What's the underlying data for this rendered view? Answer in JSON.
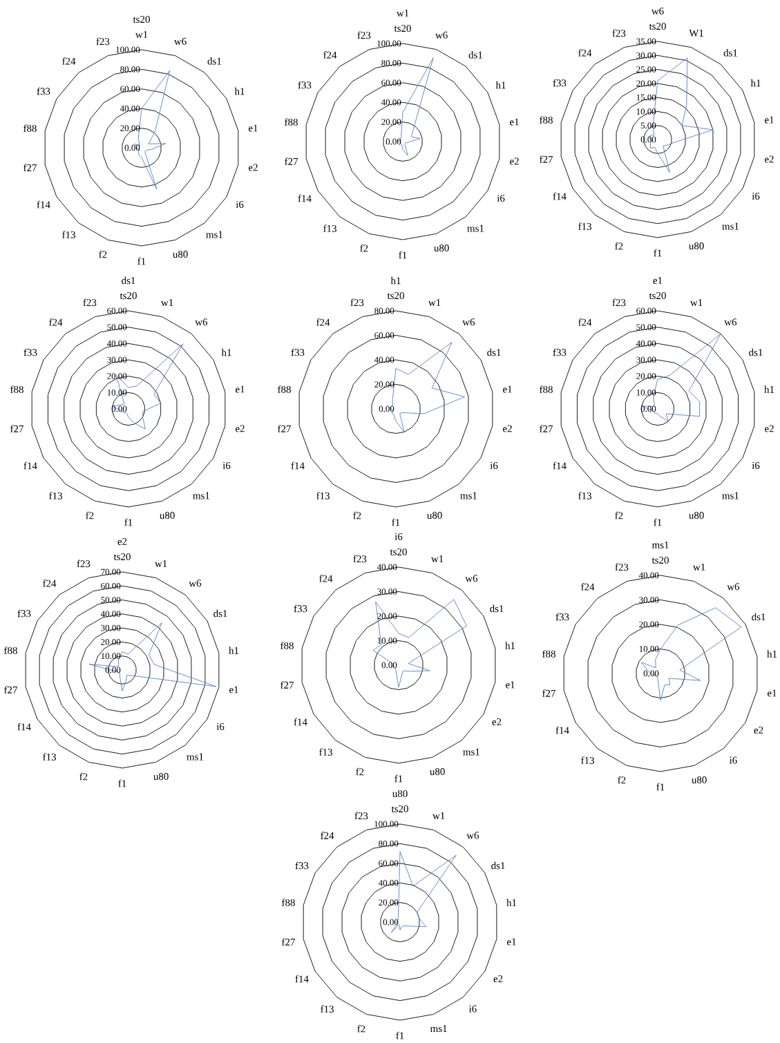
{
  "chart_data": [
    {
      "type": "radar",
      "title": "ts20",
      "categories": [
        "w1",
        "w6",
        "ds1",
        "h1",
        "e1",
        "e2",
        "i6",
        "ms1",
        "u80",
        "f1",
        "f2",
        "f13",
        "f14",
        "f27",
        "f88",
        "f33",
        "f24",
        "f23"
      ],
      "grid": true,
      "ylim": [
        0,
        100
      ],
      "yticks": [
        {
          "value": 0,
          "label": "0.00"
        },
        {
          "value": 20,
          "label": "20.00"
        },
        {
          "value": 40,
          "label": "40.00"
        },
        {
          "value": 60,
          "label": "60.00"
        },
        {
          "value": 80,
          "label": "80.00"
        },
        {
          "value": 100,
          "label": "100.00"
        }
      ],
      "series": [
        {
          "color": "#4f7fc8",
          "values": [
            40,
            84,
            21,
            8,
            25,
            10,
            5,
            5,
            45,
            10,
            8,
            5,
            3,
            5,
            5,
            8,
            3,
            10
          ]
        }
      ]
    },
    {
      "type": "radar",
      "title": "w1",
      "categories": [
        "ts20",
        "w6",
        "ds1",
        "h1",
        "e1",
        "e2",
        "i6",
        "ms1",
        "u80",
        "f1",
        "f2",
        "f13",
        "f14",
        "f27",
        "f88",
        "f33",
        "f24",
        "f23"
      ],
      "grid": true,
      "ylim": [
        0,
        100
      ],
      "yticks": [
        {
          "value": 0,
          "label": "0.00"
        },
        {
          "value": 20,
          "label": "20.00"
        },
        {
          "value": 40,
          "label": "40.00"
        },
        {
          "value": 60,
          "label": "60.00"
        },
        {
          "value": 80,
          "label": "80.00"
        },
        {
          "value": 100,
          "label": "100.00"
        }
      ],
      "series": [
        {
          "color": "#4f7fc8",
          "values": [
            30,
            91,
            17,
            10,
            18,
            5,
            3,
            3,
            15,
            8,
            3,
            3,
            3,
            3,
            5,
            3,
            3,
            5
          ]
        }
      ]
    },
    {
      "type": "radar",
      "title": "w6",
      "categories": [
        "ts20",
        "W1",
        "ds1",
        "h1",
        "e1",
        "e2",
        "i6",
        "ms1",
        "u80",
        "f1",
        "f2",
        "f13",
        "f14",
        "f27",
        "f88",
        "f33",
        "f24",
        "f23"
      ],
      "grid": true,
      "ylim": [
        0,
        35
      ],
      "yticks": [
        {
          "value": 0,
          "label": "0.00"
        },
        {
          "value": 5,
          "label": "5.00"
        },
        {
          "value": 10,
          "label": "10.00"
        },
        {
          "value": 15,
          "label": "15.00"
        },
        {
          "value": 20,
          "label": "20.00"
        },
        {
          "value": 25,
          "label": "25.00"
        },
        {
          "value": 30,
          "label": "30.00"
        },
        {
          "value": 35,
          "label": "35.00"
        }
      ],
      "series": [
        {
          "color": "#4f7fc8",
          "values": [
            21,
            31,
            16,
            10,
            20,
            6,
            4,
            3,
            12.5,
            5,
            3,
            4,
            3,
            2,
            3,
            3,
            2,
            5
          ]
        }
      ]
    },
    {
      "type": "radar",
      "title": "ds1",
      "categories": [
        "ts20",
        "w1",
        "w6",
        "h1",
        "e1",
        "e2",
        "i6",
        "ms1",
        "u80",
        "f1",
        "f2",
        "f13",
        "f14",
        "f27",
        "f88",
        "f33",
        "f24",
        "f23"
      ],
      "grid": true,
      "ylim": [
        0,
        60
      ],
      "yticks": [
        {
          "value": 0,
          "label": "0.00"
        },
        {
          "value": 10,
          "label": "10.00"
        },
        {
          "value": 20,
          "label": "20.00"
        },
        {
          "value": 30,
          "label": "30.00"
        },
        {
          "value": 40,
          "label": "40.00"
        },
        {
          "value": 50,
          "label": "50.00"
        },
        {
          "value": 60,
          "label": "60.00"
        }
      ],
      "series": [
        {
          "color": "#4f7fc8",
          "values": [
            13,
            15,
            52,
            18,
            20,
            9,
            10,
            16,
            9,
            5,
            3,
            3,
            4,
            5,
            10,
            5,
            4,
            22
          ]
        }
      ]
    },
    {
      "type": "radar",
      "title": "h1",
      "categories": [
        "ts20",
        "w1",
        "w6",
        "ds1",
        "e1",
        "e2",
        "i6",
        "ms1",
        "u80",
        "f1",
        "f2",
        "f13",
        "f14",
        "f27",
        "f88",
        "f33",
        "f24",
        "f23"
      ],
      "grid": true,
      "ylim": [
        0,
        80
      ],
      "yticks": [
        {
          "value": 0,
          "label": "0.00"
        },
        {
          "value": 20,
          "label": "20.00"
        },
        {
          "value": 40,
          "label": "40.00"
        },
        {
          "value": 60,
          "label": "60.00"
        },
        {
          "value": 80,
          "label": "80.00"
        }
      ],
      "series": [
        {
          "color": "#4f7fc8",
          "values": [
            33,
            30,
            71,
            34,
            57,
            23,
            6,
            5,
            20,
            10,
            5,
            5,
            3,
            3,
            5,
            4,
            4,
            8
          ]
        }
      ]
    },
    {
      "type": "radar",
      "title": "e1",
      "categories": [
        "ts20",
        "w1",
        "w6",
        "ds1",
        "h1",
        "e2",
        "i6",
        "ms1",
        "u80",
        "f1",
        "f2",
        "f13",
        "f14",
        "f27",
        "f88",
        "f33",
        "f24",
        "f23"
      ],
      "grid": true,
      "ylim": [
        0,
        60
      ],
      "yticks": [
        {
          "value": 0,
          "label": "0.00"
        },
        {
          "value": 10,
          "label": "10.00"
        },
        {
          "value": 20,
          "label": "20.00"
        },
        {
          "value": 30,
          "label": "30.00"
        },
        {
          "value": 40,
          "label": "40.00"
        },
        {
          "value": 50,
          "label": "50.00"
        },
        {
          "value": 60,
          "label": "60.00"
        }
      ],
      "series": [
        {
          "color": "#4f7fc8",
          "values": [
            18,
            22,
            60,
            22,
            26,
            26,
            6,
            10,
            5,
            3,
            3,
            3,
            3,
            4,
            10,
            3,
            3,
            8
          ]
        }
      ]
    },
    {
      "type": "radar",
      "title": "e2",
      "categories": [
        "ts20",
        "w1",
        "w6",
        "ds1",
        "h1",
        "e1",
        "i6",
        "ms1",
        "u80",
        "f1",
        "f2",
        "f13",
        "f14",
        "f27",
        "f88",
        "f33",
        "f24",
        "f23"
      ],
      "grid": true,
      "ylim": [
        0,
        70
      ],
      "yticks": [
        {
          "value": 0,
          "label": "0.00"
        },
        {
          "value": 10,
          "label": "10.00"
        },
        {
          "value": 20,
          "label": "20.00"
        },
        {
          "value": 30,
          "label": "30.00"
        },
        {
          "value": 40,
          "label": "40.00"
        },
        {
          "value": 50,
          "label": "50.00"
        },
        {
          "value": 60,
          "label": "60.00"
        },
        {
          "value": 70,
          "label": "70.00"
        }
      ],
      "series": [
        {
          "color": "#4f7fc8",
          "values": [
            13,
            12,
            44,
            22,
            23,
            68,
            8,
            5,
            8,
            15,
            5,
            3,
            3,
            5,
            24,
            5,
            4,
            8
          ]
        }
      ]
    },
    {
      "type": "radar",
      "title": "i6",
      "categories": [
        "ts20",
        "w1",
        "w6",
        "ds1",
        "h1",
        "e1",
        "e2",
        "ms1",
        "u80",
        "f1",
        "f2",
        "f13",
        "f14",
        "f27",
        "f88",
        "f33",
        "f24",
        "f23"
      ],
      "grid": true,
      "ylim": [
        0,
        40
      ],
      "yticks": [
        {
          "value": 0,
          "label": "0.00"
        },
        {
          "value": 10,
          "label": "10.00"
        },
        {
          "value": 20,
          "label": "20.00"
        },
        {
          "value": 30,
          "label": "30.00"
        },
        {
          "value": 40,
          "label": "40.00"
        }
      ],
      "series": [
        {
          "color": "#4f7fc8",
          "values": [
            13,
            12,
            35,
            32,
            4,
            13,
            5,
            3,
            4,
            9,
            3,
            2,
            2,
            3,
            2,
            12,
            11,
            27.5
          ]
        }
      ]
    },
    {
      "type": "radar",
      "title": "ms1",
      "categories": [
        "ts20",
        "w1",
        "w6",
        "ds1",
        "h1",
        "e1",
        "e2",
        "i6",
        "u80",
        "f1",
        "f2",
        "f13",
        "f14",
        "f27",
        "f88",
        "f33",
        "f24",
        "f23"
      ],
      "grid": true,
      "ylim": [
        0,
        40
      ],
      "yticks": [
        {
          "value": 0,
          "label": "0.00"
        },
        {
          "value": 10,
          "label": "10.00"
        },
        {
          "value": 20,
          "label": "20.00"
        },
        {
          "value": 30,
          "label": "30.00"
        },
        {
          "value": 40,
          "label": "40.00"
        }
      ],
      "series": [
        {
          "color": "#4f7fc8",
          "values": [
            10,
            21,
            35,
            38,
            8,
            16.5,
            4,
            6,
            5,
            11,
            3,
            2,
            2,
            3,
            5,
            9,
            3,
            6
          ]
        }
      ]
    },
    {
      "type": "radar",
      "title": "u80",
      "categories": [
        "ts20",
        "w1",
        "w6",
        "ds1",
        "h1",
        "e1",
        "e2",
        "i6",
        "ms1",
        "f1",
        "f2",
        "f13",
        "f14",
        "f27",
        "f88",
        "f33",
        "f24",
        "f23"
      ],
      "grid": true,
      "ylim": [
        0,
        100
      ],
      "yticks": [
        {
          "value": 0,
          "label": "0.00"
        },
        {
          "value": 20,
          "label": "20.00"
        },
        {
          "value": 40,
          "label": "40.00"
        },
        {
          "value": 60,
          "label": "60.00"
        },
        {
          "value": 80,
          "label": "80.00"
        },
        {
          "value": 100,
          "label": "100.00"
        }
      ],
      "series": [
        {
          "color": "#4f7fc8",
          "values": [
            72,
            39,
            89,
            20,
            20,
            27,
            8,
            5,
            5,
            8,
            3,
            14,
            3,
            4,
            4,
            3,
            3,
            5
          ]
        }
      ]
    }
  ]
}
